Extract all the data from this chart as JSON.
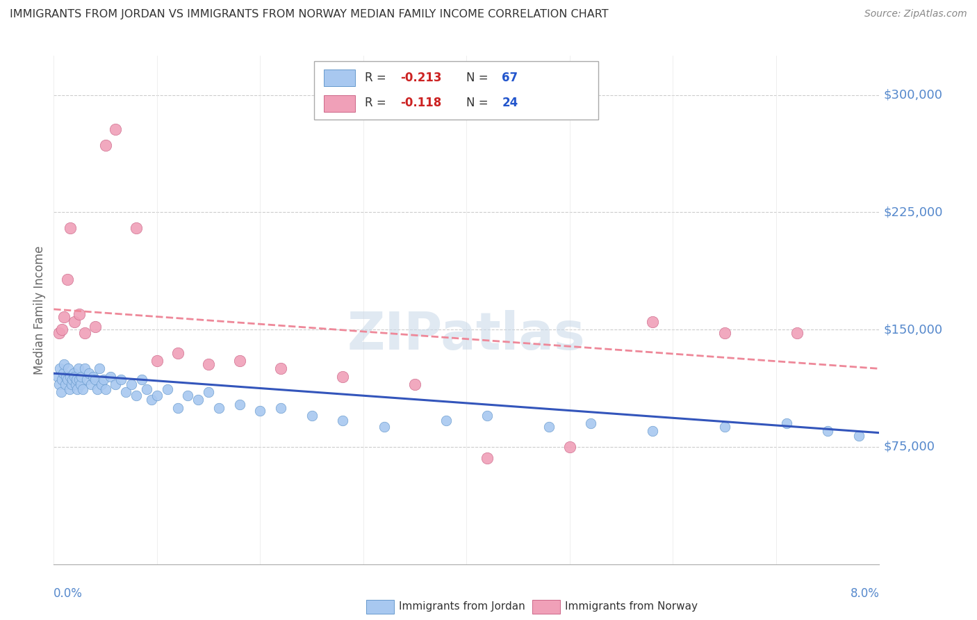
{
  "title": "IMMIGRANTS FROM JORDAN VS IMMIGRANTS FROM NORWAY MEDIAN FAMILY INCOME CORRELATION CHART",
  "source": "Source: ZipAtlas.com",
  "ylabel": "Median Family Income",
  "watermark": "ZIPatlas",
  "xlim": [
    0.0,
    0.08
  ],
  "ylim": [
    0,
    325000
  ],
  "ytick_vals": [
    75000,
    150000,
    225000,
    300000
  ],
  "ytick_labels": [
    "$75,000",
    "$150,000",
    "$225,000",
    "$300,000"
  ],
  "jordan_color": "#a8c8f0",
  "jordan_edge": "#6699cc",
  "norway_color": "#f0a0b8",
  "norway_edge": "#cc6688",
  "jordan_line_color": "#3355bb",
  "norway_line_color": "#ee8899",
  "grid_color": "#cccccc",
  "ytick_color": "#5588cc",
  "xtick_color": "#5588cc",
  "background_color": "#ffffff",
  "jordan_x": [
    0.0004,
    0.0005,
    0.0006,
    0.0007,
    0.0008,
    0.0009,
    0.001,
    0.0011,
    0.0012,
    0.0013,
    0.0014,
    0.0015,
    0.0016,
    0.0017,
    0.0018,
    0.0019,
    0.002,
    0.0021,
    0.0022,
    0.0023,
    0.0024,
    0.0025,
    0.0026,
    0.0027,
    0.0028,
    0.003,
    0.0032,
    0.0034,
    0.0036,
    0.0038,
    0.004,
    0.0042,
    0.0044,
    0.0046,
    0.0048,
    0.005,
    0.0055,
    0.006,
    0.0065,
    0.007,
    0.0075,
    0.008,
    0.0085,
    0.009,
    0.0095,
    0.01,
    0.011,
    0.012,
    0.013,
    0.014,
    0.015,
    0.016,
    0.018,
    0.02,
    0.022,
    0.025,
    0.028,
    0.032,
    0.038,
    0.042,
    0.048,
    0.052,
    0.058,
    0.065,
    0.071,
    0.075,
    0.078
  ],
  "jordan_y": [
    120000,
    115000,
    125000,
    110000,
    118000,
    122000,
    128000,
    115000,
    120000,
    118000,
    125000,
    112000,
    120000,
    115000,
    118000,
    122000,
    120000,
    115000,
    118000,
    112000,
    125000,
    118000,
    115000,
    120000,
    112000,
    125000,
    118000,
    122000,
    115000,
    120000,
    118000,
    112000,
    125000,
    115000,
    118000,
    112000,
    120000,
    115000,
    118000,
    110000,
    115000,
    108000,
    118000,
    112000,
    105000,
    108000,
    112000,
    100000,
    108000,
    105000,
    110000,
    100000,
    102000,
    98000,
    100000,
    95000,
    92000,
    88000,
    92000,
    95000,
    88000,
    90000,
    85000,
    88000,
    90000,
    85000,
    82000
  ],
  "norway_x": [
    0.0005,
    0.0008,
    0.001,
    0.0013,
    0.0016,
    0.002,
    0.0025,
    0.003,
    0.004,
    0.005,
    0.006,
    0.008,
    0.01,
    0.012,
    0.015,
    0.018,
    0.022,
    0.028,
    0.035,
    0.042,
    0.05,
    0.058,
    0.065,
    0.072
  ],
  "norway_y": [
    148000,
    150000,
    158000,
    182000,
    215000,
    155000,
    160000,
    148000,
    152000,
    268000,
    278000,
    215000,
    130000,
    135000,
    128000,
    130000,
    125000,
    120000,
    115000,
    68000,
    75000,
    155000,
    148000,
    148000
  ]
}
